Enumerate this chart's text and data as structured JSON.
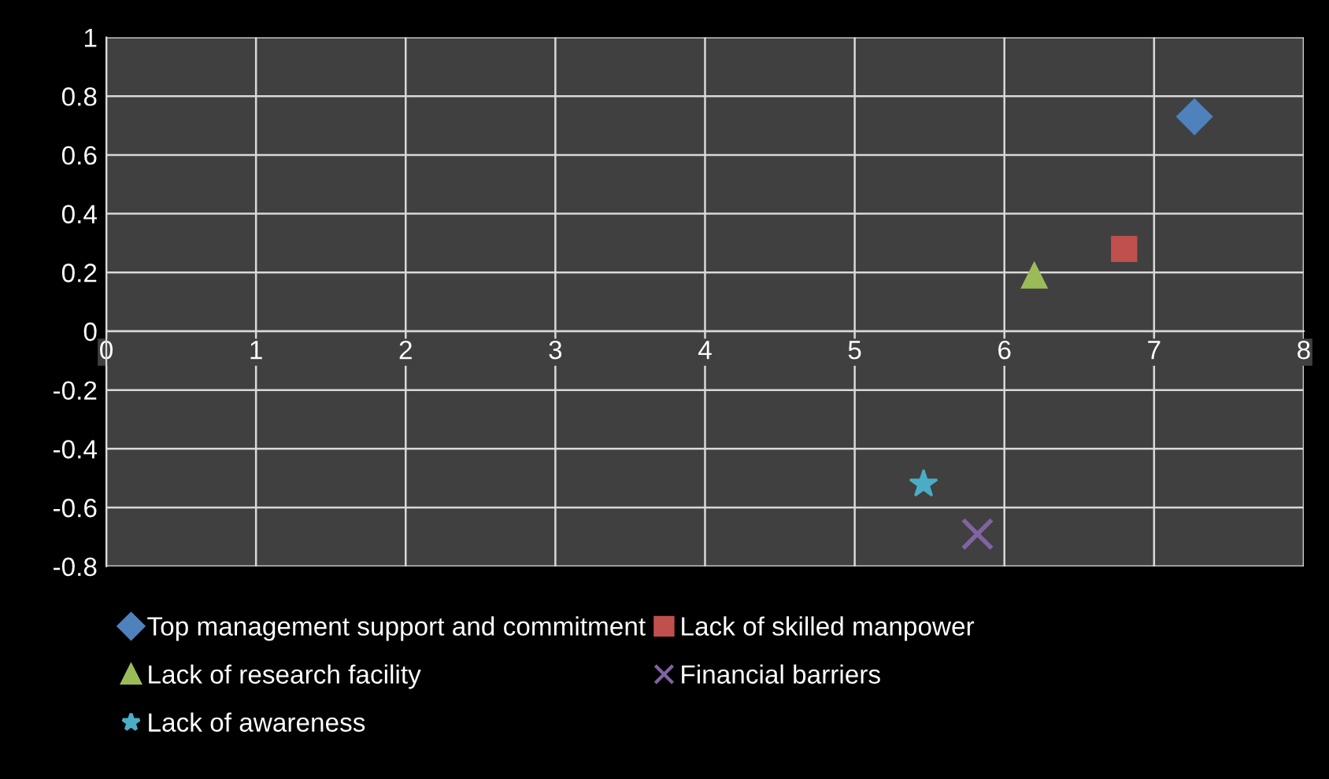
{
  "chart_data": {
    "type": "scatter",
    "xlim": [
      0,
      8
    ],
    "ylim": [
      -0.8,
      1
    ],
    "xticks": [
      0,
      1,
      2,
      3,
      4,
      5,
      6,
      7,
      8
    ],
    "yticks": [
      -0.8,
      -0.6,
      -0.4,
      -0.2,
      0,
      0.2,
      0.4,
      0.6,
      0.8,
      1
    ],
    "grid": true,
    "legend": "bottom",
    "series": [
      {
        "name": "Top management support and commitment",
        "color": "#4f81bd",
        "marker": "diamond",
        "x": [
          7.27
        ],
        "values": [
          0.73
        ]
      },
      {
        "name": "Lack of skilled manpower",
        "color": "#c0504d",
        "marker": "square",
        "x": [
          6.8
        ],
        "values": [
          0.28
        ]
      },
      {
        "name": "Lack of research facility",
        "color": "#9bbb59",
        "marker": "triangle",
        "x": [
          6.2
        ],
        "values": [
          0.19
        ]
      },
      {
        "name": "Financial barriers",
        "color": "#8064a2",
        "marker": "cross",
        "x": [
          5.82
        ],
        "values": [
          -0.69
        ]
      },
      {
        "name": "Lack of awareness",
        "color": "#4bacc6",
        "marker": "star",
        "x": [
          5.46
        ],
        "values": [
          -0.52
        ]
      }
    ]
  }
}
